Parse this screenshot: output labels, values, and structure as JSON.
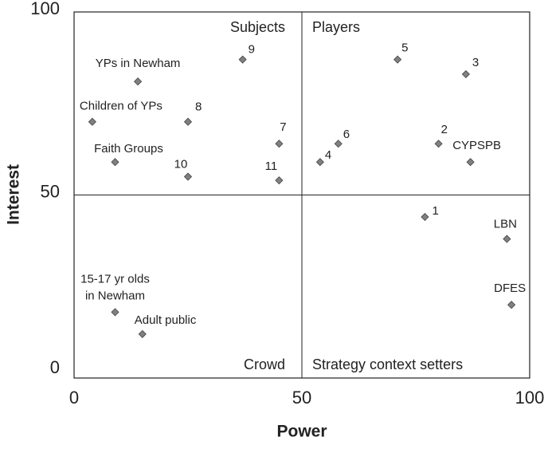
{
  "chart_data": {
    "type": "scatter",
    "x_label": "Power",
    "y_label": "Interest",
    "xlim": [
      0,
      100
    ],
    "ylim": [
      0,
      100
    ],
    "xticks": [
      0,
      50,
      100
    ],
    "yticks": [
      0,
      50,
      100
    ],
    "quadrant_labels": [
      "Subjects",
      "Players",
      "Crowd",
      "Strategy context setters"
    ],
    "series": [
      {
        "color": "#808080",
        "x": [
          14,
          4,
          25,
          37,
          45,
          9,
          25,
          45,
          54,
          58,
          71,
          86,
          80,
          87,
          77,
          95,
          96,
          9,
          15
        ],
        "values": [
          81,
          70,
          70,
          87,
          64,
          59,
          55,
          54,
          59,
          64,
          87,
          83,
          64,
          59,
          44,
          38,
          20,
          18,
          12
        ],
        "point_labels": [
          "YPs in Newham",
          "Children of YPs",
          "8",
          "9",
          "7",
          "Faith Groups",
          "10",
          "11",
          "4",
          "6",
          "5",
          "3",
          "2",
          "CYPSPB",
          "1",
          "LBN",
          "DFES",
          [
            "15-17 yr olds",
            "in Newham"
          ],
          "Adult public"
        ]
      }
    ]
  }
}
